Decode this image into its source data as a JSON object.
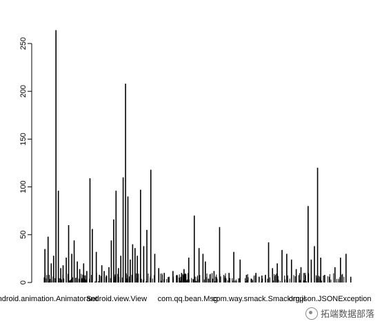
{
  "chart_data": {
    "type": "bar",
    "title": "",
    "xlabel": "",
    "ylabel": "",
    "ylim": [
      0,
      265
    ],
    "yticks": [
      0,
      50,
      100,
      150,
      200,
      250
    ],
    "x_tick_labels": [
      "android.animation.AnimatorSet",
      "android.view.View",
      "com.qq.bean.Msg",
      "com.way.smack.SmackImpl",
      "org.json.JSONException"
    ],
    "x_tick_positions": [
      1,
      10,
      19,
      28,
      37
    ],
    "x_range": [
      1,
      40
    ],
    "bar_color": "#000000",
    "x": [
      1.1,
      1.5,
      1.9,
      2.2,
      2.5,
      2.8,
      3.1,
      3.4,
      3.8,
      4.1,
      4.5,
      4.8,
      5.2,
      5.5,
      6.0,
      6.4,
      6.8,
      7.1,
      7.6,
      8.0,
      8.3,
      8.6,
      8.9,
      9.2,
      9.5,
      9.8,
      10.1,
      10.4,
      10.7,
      11.0,
      11.3,
      11.6,
      11.9,
      12.2,
      12.5,
      12.8,
      13.2,
      13.6,
      14.0,
      14.5,
      15.0,
      15.5,
      16.2,
      16.8,
      17.3,
      17.8,
      18.1,
      18.4,
      18.7,
      19.3,
      20.0,
      20.6,
      21.1,
      21.4,
      21.8,
      22.5,
      23.2,
      24.0,
      24.4,
      25.0,
      25.8,
      26.6,
      27.2,
      27.8,
      28.2,
      28.6,
      29.0,
      29.4,
      29.9,
      30.5,
      31.1,
      31.7,
      32.3,
      32.9,
      33.5,
      34.0,
      34.4,
      34.8,
      35.2,
      35.6,
      36.0,
      36.5,
      37.1,
      37.8,
      38.5,
      39.2,
      39.8
    ],
    "values": [
      35,
      48,
      20,
      28,
      264,
      96,
      15,
      18,
      26,
      60,
      30,
      44,
      22,
      14,
      20,
      12,
      109,
      56,
      32,
      8,
      18,
      12,
      7,
      16,
      44,
      66,
      96,
      15,
      28,
      110,
      208,
      90,
      24,
      40,
      36,
      28,
      97,
      38,
      55,
      118,
      30,
      15,
      10,
      6,
      12,
      8,
      5,
      10,
      14,
      26,
      70,
      36,
      30,
      22,
      4,
      12,
      58,
      4,
      10,
      32,
      24,
      8,
      4,
      10,
      6,
      4,
      8,
      42,
      15,
      20,
      34,
      30,
      24,
      14,
      16,
      10,
      80,
      24,
      38,
      120,
      26,
      8,
      6,
      16,
      26,
      30,
      6
    ]
  },
  "watermark": {
    "text": "拓端数据部落",
    "icon": "wechat-icon"
  }
}
